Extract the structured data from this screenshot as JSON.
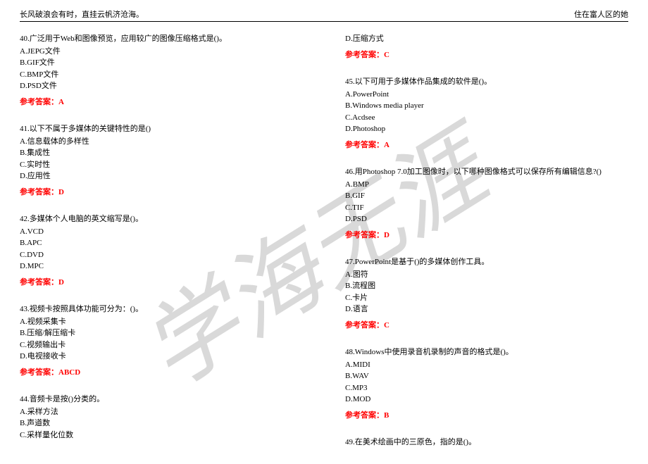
{
  "header": {
    "left": "长风破浪会有时，直挂云帆济沧海。",
    "right": "住在富人区的她"
  },
  "watermark": {
    "text": "学海无涯",
    "color": "#d9d9d9"
  },
  "answer_label_prefix": "参考答案：",
  "left_questions": [
    {
      "num": "40.",
      "stem": "广泛用于Web和图像预览，应用较广的图像压缩格式是()。",
      "opts": [
        "A.JEPG文件",
        "B.GIF文件",
        "C.BMP文件",
        "D.PSD文件"
      ],
      "ans": "A"
    },
    {
      "num": "41.",
      "stem": "以下不属于多媒体的关键特性的是()",
      "opts": [
        "A.信息载体的多样性",
        "B.集成性",
        "C.实时性",
        "D.应用性"
      ],
      "ans": "D"
    },
    {
      "num": "42.",
      "stem": "多媒体个人电脑的英文缩写是()。",
      "opts": [
        "A.VCD",
        "B.APC",
        "C.DVD",
        "D.MPC"
      ],
      "ans": "D"
    },
    {
      "num": "43.",
      "stem": "视频卡按照具体功能可分为：()。",
      "opts": [
        "A.视频采集卡",
        "B.压缩/解压缩卡",
        "C.视频输出卡",
        "D.电视接收卡"
      ],
      "ans": "ABCD"
    },
    {
      "num": "44.",
      "stem": "音频卡是按()分类的。",
      "opts": [
        "A.采样方法",
        "B.声道数",
        "C.采样量化位数"
      ],
      "ans": null
    }
  ],
  "right_extra": {
    "opt": "D.压缩方式",
    "ans": "C"
  },
  "right_questions": [
    {
      "num": "45.",
      "stem": "以下可用于多媒体作品集成的软件是()。",
      "opts": [
        "A.PowerPoint",
        "B.Windows media player",
        "C.Acdsee",
        "D.Photoshop"
      ],
      "ans": "A"
    },
    {
      "num": "46.",
      "stem": "用Photoshop 7.0加工图像时，以下哪种图像格式可以保存所有编辑信息?()",
      "opts": [
        "A.BMP",
        "B.GIF",
        "C.TIF",
        "D.PSD"
      ],
      "ans": "D"
    },
    {
      "num": "47.",
      "stem": "PowerPoint是基于()的多媒体创作工具。",
      "opts": [
        "A.图符",
        "B.流程图",
        "C.卡片",
        "D.语言"
      ],
      "ans": "C"
    },
    {
      "num": "48.",
      "stem": "Windows中使用录音机录制的声音的格式是()。",
      "opts": [
        "A.MIDI",
        "B.WAV",
        "C.MP3",
        "D.MOD"
      ],
      "ans": "B"
    },
    {
      "num": "49.",
      "stem": "在美术绘画中的三原色，指的是()。",
      "opts": [],
      "ans": null
    }
  ]
}
